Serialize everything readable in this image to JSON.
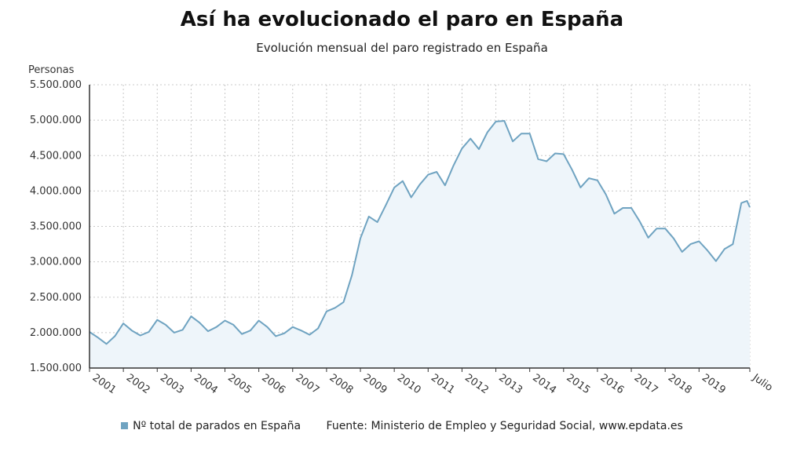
{
  "title": "Así ha evolucionado el paro en España",
  "subtitle": "Evolución mensual del paro registrado en España",
  "source": "Fuente: Ministerio de Empleo y Seguridad Social, www.epdata.es",
  "colors": {
    "line": "#6fa3c1",
    "fill": "#eef5fa",
    "grid": "#c8c8c8",
    "axis": "#333333"
  },
  "chart_data": {
    "type": "area",
    "ylabel": "Personas",
    "xlabel": "",
    "ylim": [
      1500000,
      5500000
    ],
    "yticks": [
      1500000,
      2000000,
      2500000,
      3000000,
      3500000,
      4000000,
      4500000,
      5000000,
      5500000
    ],
    "ytick_labels": [
      "1.500.000",
      "2.000.000",
      "2.500.000",
      "3.000.000",
      "3.500.000",
      "4.000.000",
      "4.500.000",
      "5.000.000",
      "5.500.000"
    ],
    "xticks": [
      "2001",
      "2002",
      "2003",
      "2004",
      "2005",
      "2006",
      "2007",
      "2008",
      "2009",
      "2010",
      "2011",
      "2012",
      "2013",
      "2014",
      "2015",
      "2016",
      "2017",
      "2018",
      "2019",
      "2020-07"
    ],
    "xtick_labels": [
      "2001",
      "2002",
      "2003",
      "2004",
      "2005",
      "2006",
      "2007",
      "2008",
      "2009",
      "2010",
      "2011",
      "2012",
      "2013",
      "2014",
      "2015",
      "2016",
      "2017",
      "2018",
      "2019",
      "Julio"
    ],
    "grid": true,
    "legend": "bottom",
    "series": [
      {
        "name": "Nº total de parados en España",
        "points": [
          [
            "2001-01",
            2010000
          ],
          [
            "2001-04",
            1930000
          ],
          [
            "2001-07",
            1840000
          ],
          [
            "2001-10",
            1950000
          ],
          [
            "2002-01",
            2130000
          ],
          [
            "2002-04",
            2030000
          ],
          [
            "2002-07",
            1960000
          ],
          [
            "2002-10",
            2010000
          ],
          [
            "2003-01",
            2180000
          ],
          [
            "2003-04",
            2110000
          ],
          [
            "2003-07",
            2000000
          ],
          [
            "2003-10",
            2040000
          ],
          [
            "2004-01",
            2230000
          ],
          [
            "2004-04",
            2140000
          ],
          [
            "2004-07",
            2020000
          ],
          [
            "2004-10",
            2080000
          ],
          [
            "2005-01",
            2170000
          ],
          [
            "2005-04",
            2110000
          ],
          [
            "2005-07",
            1980000
          ],
          [
            "2005-10",
            2030000
          ],
          [
            "2006-01",
            2170000
          ],
          [
            "2006-04",
            2080000
          ],
          [
            "2006-07",
            1950000
          ],
          [
            "2006-10",
            1990000
          ],
          [
            "2007-01",
            2080000
          ],
          [
            "2007-04",
            2030000
          ],
          [
            "2007-07",
            1970000
          ],
          [
            "2007-10",
            2060000
          ],
          [
            "2008-01",
            2300000
          ],
          [
            "2008-04",
            2350000
          ],
          [
            "2008-07",
            2430000
          ],
          [
            "2008-10",
            2810000
          ],
          [
            "2009-01",
            3330000
          ],
          [
            "2009-04",
            3640000
          ],
          [
            "2009-07",
            3560000
          ],
          [
            "2009-10",
            3800000
          ],
          [
            "2010-01",
            4050000
          ],
          [
            "2010-04",
            4140000
          ],
          [
            "2010-07",
            3910000
          ],
          [
            "2010-10",
            4090000
          ],
          [
            "2011-01",
            4230000
          ],
          [
            "2011-04",
            4270000
          ],
          [
            "2011-07",
            4080000
          ],
          [
            "2011-10",
            4360000
          ],
          [
            "2012-01",
            4600000
          ],
          [
            "2012-04",
            4740000
          ],
          [
            "2012-07",
            4590000
          ],
          [
            "2012-10",
            4830000
          ],
          [
            "2013-01",
            4980000
          ],
          [
            "2013-04",
            4990000
          ],
          [
            "2013-07",
            4700000
          ],
          [
            "2013-10",
            4810000
          ],
          [
            "2014-01",
            4810000
          ],
          [
            "2014-04",
            4450000
          ],
          [
            "2014-07",
            4420000
          ],
          [
            "2014-10",
            4530000
          ],
          [
            "2015-01",
            4520000
          ],
          [
            "2015-04",
            4300000
          ],
          [
            "2015-07",
            4050000
          ],
          [
            "2015-10",
            4180000
          ],
          [
            "2016-01",
            4150000
          ],
          [
            "2016-04",
            3950000
          ],
          [
            "2016-07",
            3680000
          ],
          [
            "2016-10",
            3760000
          ],
          [
            "2017-01",
            3760000
          ],
          [
            "2017-04",
            3570000
          ],
          [
            "2017-07",
            3340000
          ],
          [
            "2017-10",
            3470000
          ],
          [
            "2018-01",
            3470000
          ],
          [
            "2018-04",
            3330000
          ],
          [
            "2018-07",
            3140000
          ],
          [
            "2018-10",
            3250000
          ],
          [
            "2019-01",
            3290000
          ],
          [
            "2019-04",
            3160000
          ],
          [
            "2019-07",
            3010000
          ],
          [
            "2019-10",
            3180000
          ],
          [
            "2020-01",
            3250000
          ],
          [
            "2020-04",
            3830000
          ],
          [
            "2020-06",
            3860000
          ],
          [
            "2020-07",
            3770000
          ]
        ]
      }
    ]
  }
}
